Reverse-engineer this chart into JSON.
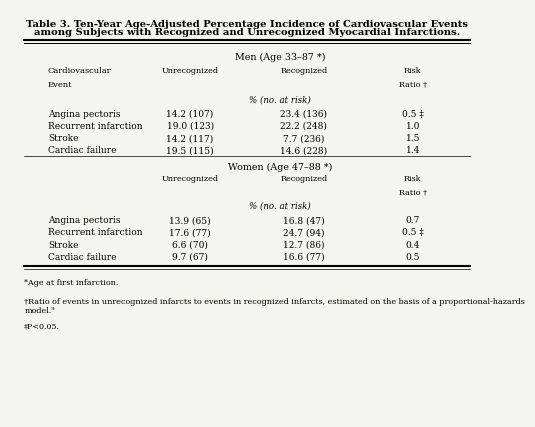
{
  "title_line1": "Table 3. Ten-Year Age-Adjusted Percentage Incidence of Cardiovascular Events",
  "title_line2": "among Subjects with Recognized and Unrecognized Myocardial Infarctions.",
  "men_header": "Men (Age 33–87 *)",
  "women_header": "Women (Age 47–88 *)",
  "col_headers": [
    "Cardiovascular\nEvent",
    "Unrecognized",
    "Recognized",
    "Risk\nRatio †"
  ],
  "pct_risk": "% (no. at risk)",
  "men_data": [
    [
      "Angina pectoris",
      "14.2 (107)",
      "23.4 (136)",
      "0.5 ‡"
    ],
    [
      "Recurrent infarction",
      "19.0 (123)",
      "22.2 (248)",
      "1.0"
    ],
    [
      "Stroke",
      "14.2 (117)",
      "7.7 (236)",
      "1.5"
    ],
    [
      "Cardiac failure",
      "19.5 (115)",
      "14.6 (228)",
      "1.4"
    ]
  ],
  "women_data": [
    [
      "Angina pectoris",
      "13.9 (65)",
      "16.8 (47)",
      "0.7"
    ],
    [
      "Recurrent infarction",
      "17.6 (77)",
      "24.7 (94)",
      "0.5 ‡"
    ],
    [
      "Stroke",
      "6.6 (70)",
      "12.7 (86)",
      "0.4"
    ],
    [
      "Cardiac failure",
      "9.7 (67)",
      "16.6 (77)",
      "0.5"
    ]
  ],
  "footnote1": "*Age at first infarction.",
  "footnote2": "†Ratio of events in unrecognized infarcts to events in recognized infarcts, estimated on the basis of a proportional-hazards\nmodel.⁹",
  "footnote3": "‡P<0.05.",
  "bg_color": "#f5f5f0",
  "text_color": "#000000"
}
